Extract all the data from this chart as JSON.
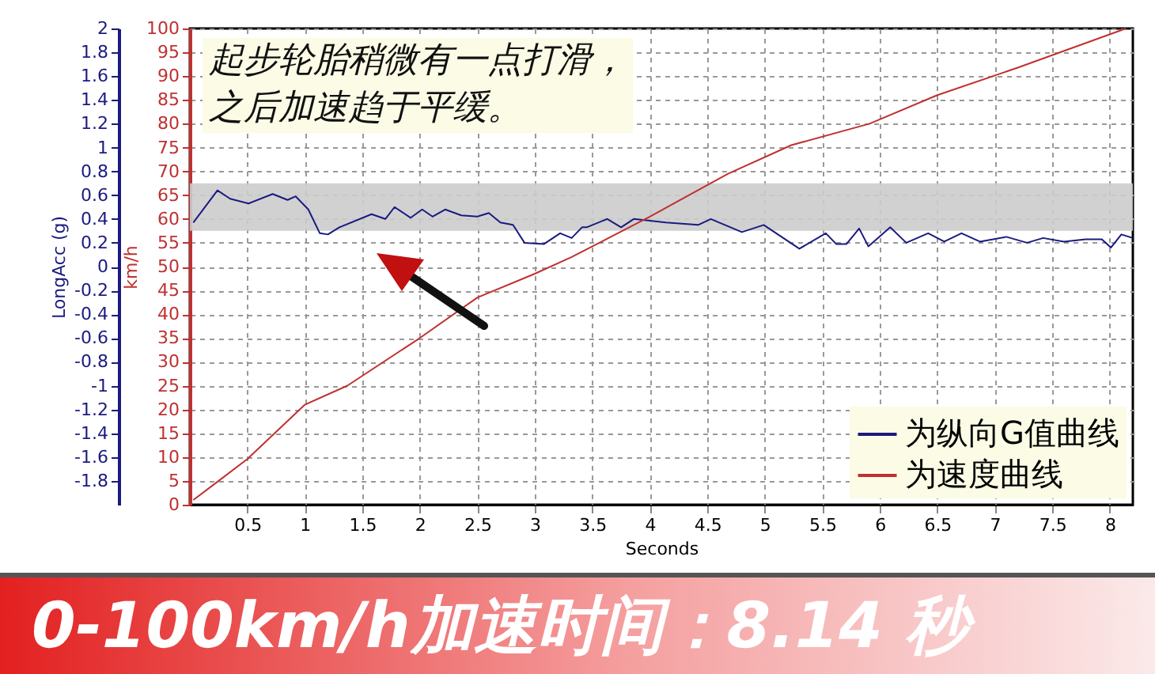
{
  "chart_data": {
    "type": "line",
    "xlabel": "Seconds",
    "ylabel": "LongAcc (g)",
    "y2label": "km/h",
    "annotations": [
      "起步轮胎稍微有一点打滑，",
      "之后加速趋于平缓。",
      "0-100km/h加速时间：8.14 秒"
    ],
    "xlim": [
      0,
      8.2
    ],
    "xticks": [
      0.5,
      1,
      1.5,
      2,
      2.5,
      3,
      3.5,
      4,
      4.5,
      5,
      5.5,
      6,
      6.5,
      7,
      7.5,
      8
    ],
    "ylim": [
      -2,
      2
    ],
    "yticks": [
      -1.8,
      -1.6,
      -1.4,
      -1.2,
      -1,
      -0.8,
      -0.6,
      -0.4,
      -0.2,
      0,
      0.2,
      0.4,
      0.6,
      0.8,
      1,
      1.2,
      1.4,
      1.6,
      1.8,
      2
    ],
    "y2lim": [
      0,
      100
    ],
    "y2ticks": [
      0,
      5,
      10,
      15,
      20,
      25,
      30,
      35,
      40,
      45,
      50,
      55,
      60,
      65,
      70,
      75,
      80,
      85,
      90,
      95,
      100
    ],
    "grid": true,
    "legend": "bottom right",
    "bands": [
      {
        "axis": "y",
        "from": 0.3,
        "to": 0.7,
        "color": "#cccccc"
      }
    ],
    "series": [
      {
        "name": "为纵向G值曲线",
        "color": "#1a1a80",
        "x": [
          0.03,
          0.24,
          0.35,
          0.51,
          0.72,
          0.85,
          0.92,
          1.03,
          1.13,
          1.2,
          1.3,
          1.58,
          1.7,
          1.78,
          1.92,
          2.02,
          2.11,
          2.22,
          2.36,
          2.5,
          2.6,
          2.7,
          2.81,
          2.91,
          3.08,
          3.22,
          3.32,
          3.41,
          3.45,
          3.63,
          3.75,
          3.86,
          4.14,
          4.42,
          4.53,
          4.8,
          4.99,
          5.3,
          5.53,
          5.62,
          5.71,
          5.82,
          5.9,
          6.09,
          6.23,
          6.42,
          6.56,
          6.71,
          6.87,
          7.1,
          7.28,
          7.42,
          7.6,
          7.79,
          7.93,
          8.01,
          8.1,
          8.2
        ],
        "values": [
          0.37,
          0.64,
          0.57,
          0.53,
          0.61,
          0.56,
          0.59,
          0.48,
          0.28,
          0.27,
          0.33,
          0.44,
          0.4,
          0.5,
          0.41,
          0.48,
          0.42,
          0.48,
          0.43,
          0.42,
          0.45,
          0.37,
          0.35,
          0.2,
          0.19,
          0.28,
          0.24,
          0.33,
          0.33,
          0.4,
          0.33,
          0.4,
          0.37,
          0.35,
          0.4,
          0.29,
          0.35,
          0.15,
          0.28,
          0.19,
          0.19,
          0.32,
          0.17,
          0.33,
          0.2,
          0.28,
          0.21,
          0.28,
          0.21,
          0.25,
          0.2,
          0.24,
          0.21,
          0.23,
          0.23,
          0.16,
          0.27,
          0.24
        ]
      },
      {
        "name": "为速度曲线",
        "color": "#c03030",
        "axis": "y2",
        "x": [
          0.03,
          0.25,
          0.5,
          1,
          1.37,
          2,
          2.5,
          3,
          3.32,
          4,
          4.68,
          5.23,
          5.91,
          6.5,
          7.19,
          8.14
        ],
        "values": [
          1,
          5,
          9.6,
          21,
          25,
          35,
          43.5,
          48.5,
          52,
          60.5,
          69.5,
          75.5,
          80,
          86,
          91.7,
          100
        ]
      }
    ]
  }
}
